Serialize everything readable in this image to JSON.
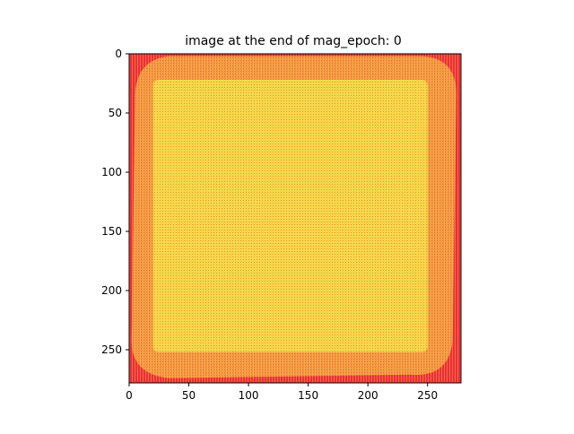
{
  "chart_data": {
    "type": "heatmap",
    "title": "image at the end of mag_epoch: 0",
    "xlabel": "",
    "ylabel": "",
    "xlim": [
      0,
      278
    ],
    "ylim": [
      278,
      0
    ],
    "xticks": [
      0,
      50,
      100,
      150,
      200,
      250
    ],
    "yticks": [
      0,
      50,
      100,
      150,
      200,
      250
    ],
    "grid": false,
    "colors": {
      "background": "#ee2d3c",
      "stripe": "#f6c93a",
      "square": "#f7d84a",
      "square_stripe": "#e0792b"
    },
    "region": {
      "label": "inner square",
      "outer_rounded_blob": {
        "x0": 2,
        "x1": 274,
        "y0": 2,
        "y1": 274
      },
      "inner_square": {
        "x0": 20,
        "x1": 250,
        "y0": 22,
        "y1": 252
      }
    }
  }
}
